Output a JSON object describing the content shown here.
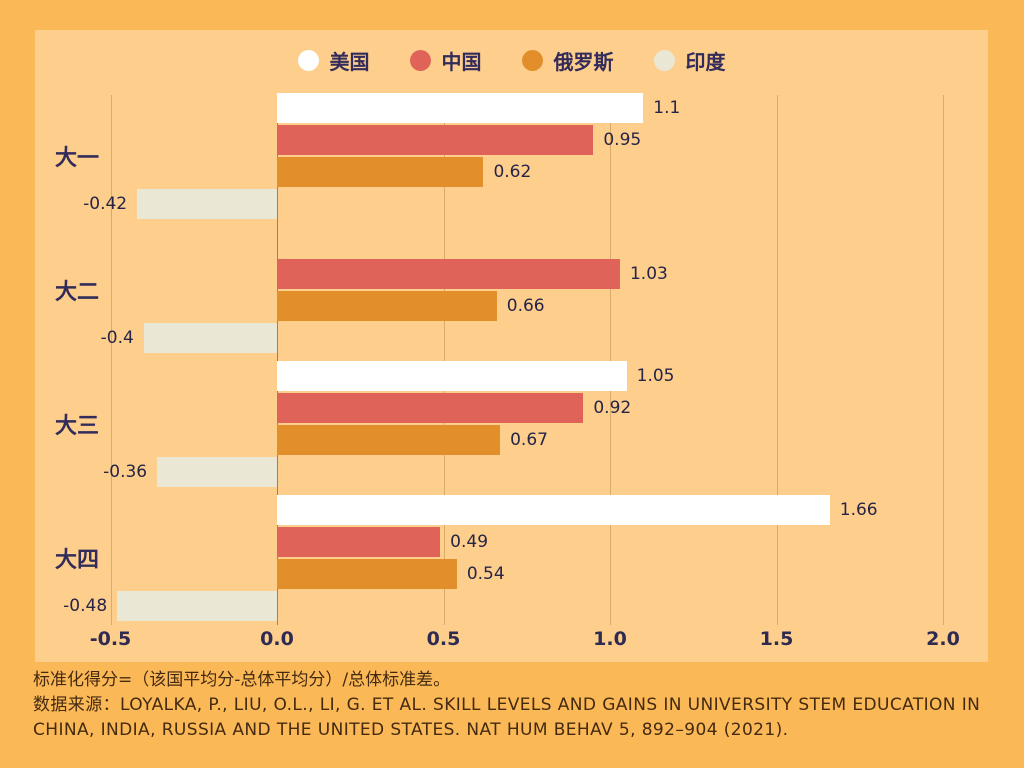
{
  "colors": {
    "page_bg": "#FBB857",
    "panel_bg": "#FDCE8C",
    "us_bar": "#FFFFFF",
    "china_bar": "#E0635A",
    "russia_bar": "#E28E2B",
    "india_bar": "#EBE7D5",
    "label_text": "#332C5B",
    "value_text": "#262447",
    "footer_text": "#442A10"
  },
  "chart_data": {
    "type": "bar",
    "orientation": "horizontal",
    "title": "",
    "xlabel": "",
    "ylabel": "",
    "xlim": [
      -0.5,
      2.0
    ],
    "grid": true,
    "legend_position": "top",
    "categories": [
      "大一",
      "大二",
      "大三",
      "大四"
    ],
    "series": [
      {
        "name": "美国",
        "color": "#FFFFFF",
        "values": [
          1.1,
          null,
          1.05,
          1.66
        ],
        "labels": [
          "1.1",
          "",
          "1.05",
          "1.66"
        ]
      },
      {
        "name": "中国",
        "color": "#E0635A",
        "values": [
          0.95,
          1.03,
          0.92,
          0.49
        ],
        "labels": [
          "0.95",
          "1.03",
          "0.92",
          "0.49"
        ]
      },
      {
        "name": "俄罗斯",
        "color": "#E28E2B",
        "values": [
          0.62,
          0.66,
          0.67,
          0.54
        ],
        "labels": [
          "0.62",
          "0.66",
          "0.67",
          "0.54"
        ]
      },
      {
        "name": "印度",
        "color": "#EBE7D5",
        "values": [
          -0.42,
          -0.4,
          -0.36,
          -0.48
        ],
        "labels": [
          "-0.42",
          "-0.4",
          "-0.36",
          "-0.48"
        ]
      }
    ],
    "x_ticks": [
      {
        "value": -0.5,
        "label": "-0.5"
      },
      {
        "value": 0.0,
        "label": "0.0"
      },
      {
        "value": 0.5,
        "label": "0.5"
      },
      {
        "value": 1.0,
        "label": "1.0"
      },
      {
        "value": 1.5,
        "label": "1.5"
      },
      {
        "value": 2.0,
        "label": "2.0"
      }
    ]
  },
  "footer": {
    "formula": "标准化得分=（该国平均分-总体平均分）/总体标准差。",
    "source": "数据来源：LOYALKA, P., LIU, O.L., LI, G. ET AL. SKILL LEVELS AND GAINS IN UNIVERSITY STEM EDUCATION IN CHINA, INDIA, RUSSIA AND THE UNITED STATES. NAT HUM BEHAV 5, 892–904 (2021)."
  }
}
